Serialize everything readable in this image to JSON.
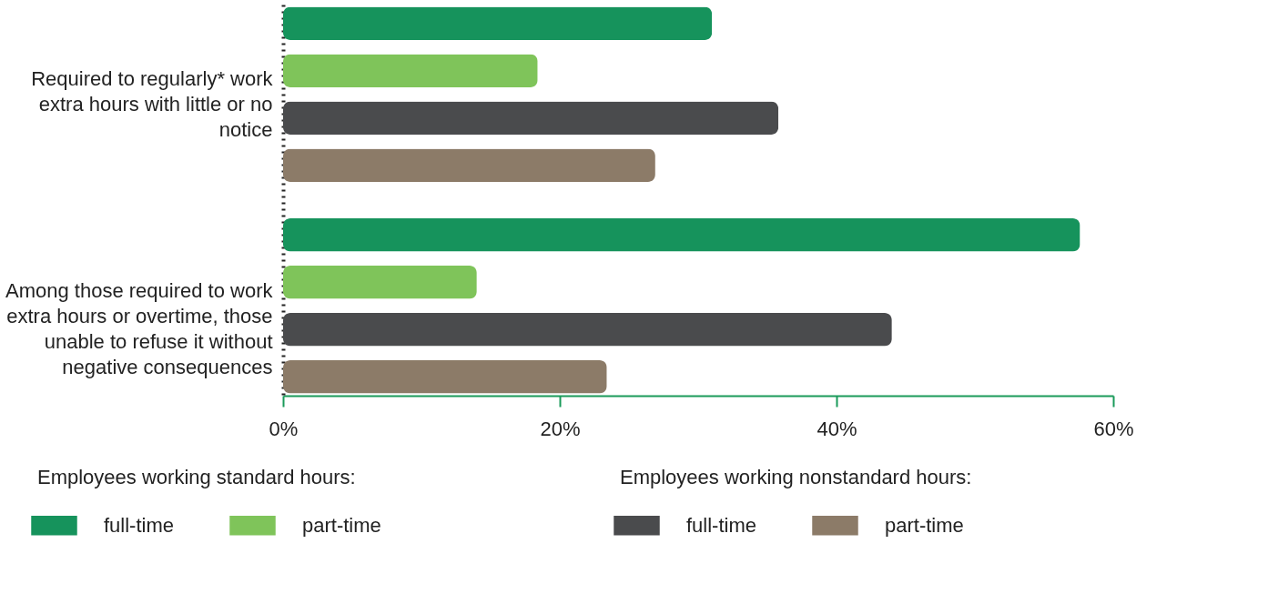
{
  "chart_data": {
    "type": "bar",
    "orientation": "horizontal",
    "categories": [
      "Required to regularly* work extra hours with little or no notice",
      "Among those required to work extra hours or overtime, those unable to refuse it without negative consequences"
    ],
    "series": [
      {
        "name": "full-time",
        "color": "#16935c",
        "values": [
          31.0,
          57.6
        ]
      },
      {
        "name": "part-time",
        "color": "#7fc45a",
        "values": [
          18.4,
          14.0
        ]
      },
      {
        "name": "full-time",
        "color": "#4a4b4d",
        "values": [
          35.8,
          44.0
        ]
      },
      {
        "name": "part-time",
        "color": "#8c7b68",
        "values": [
          26.9,
          23.4
        ]
      }
    ],
    "xlim": [
      0,
      60
    ],
    "xticks": [
      {
        "value": 0,
        "label": "0%"
      },
      {
        "value": 20,
        "label": "20%"
      },
      {
        "value": 40,
        "label": "40%"
      },
      {
        "value": 60,
        "label": "60%"
      }
    ],
    "annotations": [
      "Employees working standard hours:",
      "Employees working nonstandard hours:"
    ],
    "legend": "bottom",
    "grid": false
  }
}
